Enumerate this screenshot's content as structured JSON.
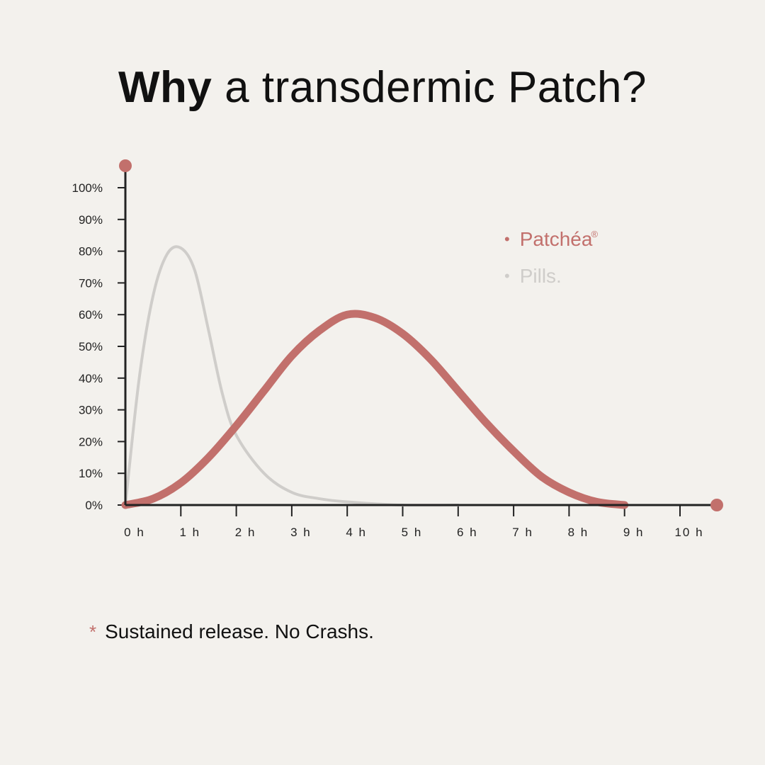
{
  "title": {
    "bold": "Why",
    "rest": "a transdermic Patch?"
  },
  "colors": {
    "patch": "#c2706c",
    "pills": "#cfcdca",
    "axis": "#222222",
    "background": "#f3f1ed"
  },
  "legend": {
    "patch_label": "Patchéa",
    "patch_mark": "®",
    "pills_label": "Pills.",
    "bullet": "•"
  },
  "footnote": {
    "star": "*",
    "text": "Sustained release. No Crashs."
  },
  "chart_data": {
    "type": "line",
    "x_ticks": [
      "0 h",
      "1 h",
      "2 h",
      "3 h",
      "4 h",
      "5 h",
      "6 h",
      "7 h",
      "8 h",
      "9 h",
      "10 h"
    ],
    "y_ticks": [
      "0%",
      "10%",
      "20%",
      "30%",
      "40%",
      "50%",
      "60%",
      "70%",
      "80%",
      "90%",
      "100%"
    ],
    "xlim": [
      0,
      10
    ],
    "ylim": [
      0,
      100
    ],
    "grid": false,
    "legend_position": "top-right",
    "series": [
      {
        "name": "Pills.",
        "x": [
          0,
          0.25,
          0.5,
          0.75,
          1,
          1.25,
          1.5,
          1.75,
          2,
          2.5,
          3,
          3.5,
          4,
          5,
          6
        ],
        "y": [
          0,
          40,
          66,
          79,
          81,
          74,
          55,
          35,
          22,
          10,
          4,
          2,
          1,
          0,
          0
        ]
      },
      {
        "name": "Patchéa",
        "x": [
          0,
          0.5,
          1,
          1.5,
          2,
          2.5,
          3,
          3.5,
          4,
          4.5,
          5,
          5.5,
          6,
          6.5,
          7,
          7.5,
          8,
          8.5,
          9
        ],
        "y": [
          0,
          2,
          7,
          15,
          25,
          36,
          47,
          55,
          60,
          59,
          54,
          46,
          36,
          26,
          17,
          9,
          4,
          1,
          0
        ]
      }
    ]
  }
}
